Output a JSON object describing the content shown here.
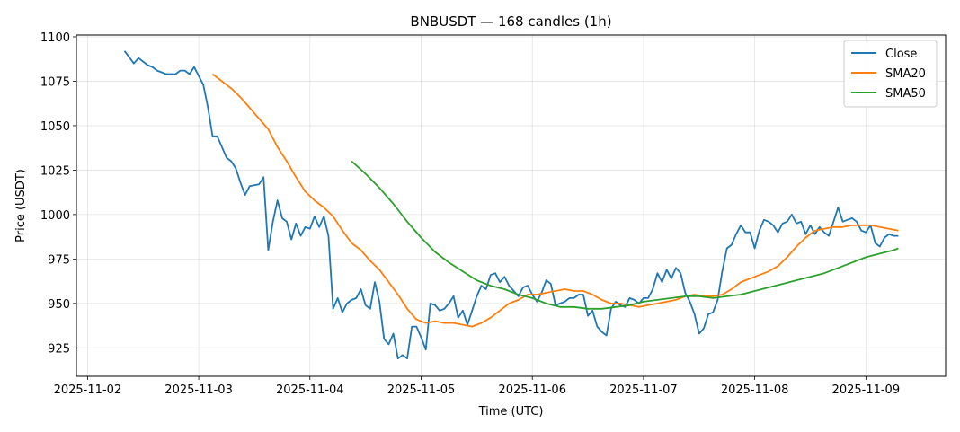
{
  "chart_data": {
    "type": "line",
    "title": "BNBUSDT — 168 candles (1h)",
    "xlabel": "Time (UTC)",
    "ylabel": "Price (USDT)",
    "x_start": "2025-11-02 08:00",
    "x_end": "2025-11-09 07:00",
    "x_tick_labels": [
      "2025-11-02",
      "2025-11-03",
      "2025-11-04",
      "2025-11-05",
      "2025-11-06",
      "2025-11-07",
      "2025-11-08",
      "2025-11-09"
    ],
    "y_tick_labels": [
      "925",
      "950",
      "975",
      "1000",
      "1025",
      "1050",
      "1075",
      "1100"
    ],
    "y_ticks": [
      925,
      950,
      975,
      1000,
      1025,
      1050,
      1075,
      1100
    ],
    "ylim": [
      909,
      1101
    ],
    "xlim_hours": [
      -2.4,
      185.2
    ],
    "grid": true,
    "legend_position": "upper-right",
    "series": [
      {
        "name": "Close",
        "color": "#1f77b4",
        "points": [
          [
            8,
            1092
          ],
          [
            10,
            1085
          ],
          [
            11,
            1088
          ],
          [
            13,
            1084
          ],
          [
            14,
            1083
          ],
          [
            15,
            1081
          ],
          [
            17,
            1079
          ],
          [
            18,
            1079
          ],
          [
            19,
            1079
          ],
          [
            20,
            1081
          ],
          [
            21,
            1081
          ],
          [
            22,
            1079
          ],
          [
            23,
            1083
          ],
          [
            25,
            1073
          ],
          [
            26,
            1060
          ],
          [
            27,
            1044
          ],
          [
            28,
            1044
          ],
          [
            29,
            1038
          ],
          [
            30,
            1032
          ],
          [
            31,
            1030
          ],
          [
            32,
            1026
          ],
          [
            33,
            1018
          ],
          [
            34,
            1011
          ],
          [
            35,
            1016
          ],
          [
            37,
            1017
          ],
          [
            38,
            1021
          ],
          [
            39,
            980
          ],
          [
            40,
            996
          ],
          [
            41,
            1008
          ],
          [
            42,
            998
          ],
          [
            43,
            996
          ],
          [
            44,
            986
          ],
          [
            45,
            995
          ],
          [
            46,
            988
          ],
          [
            47,
            993
          ],
          [
            48,
            992
          ],
          [
            49,
            999
          ],
          [
            50,
            993
          ],
          [
            51,
            999
          ],
          [
            52,
            988
          ],
          [
            53,
            947
          ],
          [
            54,
            953
          ],
          [
            55,
            945
          ],
          [
            56,
            950
          ],
          [
            57,
            952
          ],
          [
            58,
            953
          ],
          [
            59,
            958
          ],
          [
            60,
            949
          ],
          [
            61,
            947
          ],
          [
            62,
            962
          ],
          [
            63,
            951
          ],
          [
            64,
            930
          ],
          [
            65,
            927
          ],
          [
            66,
            933
          ],
          [
            67,
            919
          ],
          [
            68,
            921
          ],
          [
            69,
            919
          ],
          [
            70,
            937
          ],
          [
            71,
            937
          ],
          [
            72,
            931
          ],
          [
            73,
            924
          ],
          [
            74,
            950
          ],
          [
            75,
            949
          ],
          [
            76,
            946
          ],
          [
            77,
            947
          ],
          [
            78,
            950
          ],
          [
            79,
            954
          ],
          [
            80,
            942
          ],
          [
            81,
            946
          ],
          [
            82,
            938
          ],
          [
            83,
            946
          ],
          [
            84,
            954
          ],
          [
            85,
            960
          ],
          [
            86,
            958
          ],
          [
            87,
            966
          ],
          [
            88,
            967
          ],
          [
            89,
            962
          ],
          [
            90,
            965
          ],
          [
            91,
            960
          ],
          [
            92,
            957
          ],
          [
            93,
            954
          ],
          [
            94,
            959
          ],
          [
            95,
            960
          ],
          [
            96,
            955
          ],
          [
            97,
            951
          ],
          [
            98,
            956
          ],
          [
            99,
            963
          ],
          [
            100,
            961
          ],
          [
            101,
            949
          ],
          [
            102,
            950
          ],
          [
            103,
            951
          ],
          [
            104,
            953
          ],
          [
            105,
            953
          ],
          [
            106,
            955
          ],
          [
            107,
            955
          ],
          [
            108,
            943
          ],
          [
            109,
            946
          ],
          [
            110,
            937
          ],
          [
            111,
            934
          ],
          [
            112,
            932
          ],
          [
            113,
            947
          ],
          [
            114,
            951
          ],
          [
            115,
            949
          ],
          [
            116,
            948
          ],
          [
            117,
            953
          ],
          [
            118,
            952
          ],
          [
            119,
            950
          ],
          [
            120,
            953
          ],
          [
            121,
            953
          ],
          [
            122,
            958
          ],
          [
            123,
            967
          ],
          [
            124,
            962
          ],
          [
            125,
            969
          ],
          [
            126,
            964
          ],
          [
            127,
            970
          ],
          [
            128,
            967
          ],
          [
            129,
            956
          ],
          [
            130,
            951
          ],
          [
            131,
            944
          ],
          [
            132,
            933
          ],
          [
            133,
            936
          ],
          [
            134,
            944
          ],
          [
            135,
            945
          ],
          [
            136,
            952
          ],
          [
            137,
            968
          ],
          [
            138,
            981
          ],
          [
            139,
            983
          ],
          [
            140,
            989
          ],
          [
            141,
            994
          ],
          [
            142,
            990
          ],
          [
            143,
            990
          ],
          [
            144,
            981
          ],
          [
            145,
            991
          ],
          [
            146,
            997
          ],
          [
            147,
            996
          ],
          [
            148,
            994
          ],
          [
            149,
            990
          ],
          [
            150,
            995
          ],
          [
            151,
            996
          ],
          [
            152,
            1000
          ],
          [
            153,
            995
          ],
          [
            154,
            996
          ],
          [
            155,
            989
          ],
          [
            156,
            994
          ],
          [
            157,
            989
          ],
          [
            158,
            993
          ],
          [
            159,
            990
          ],
          [
            160,
            988
          ],
          [
            161,
            996
          ],
          [
            162,
            1004
          ],
          [
            163,
            996
          ],
          [
            164,
            997
          ],
          [
            165,
            998
          ],
          [
            166,
            996
          ],
          [
            167,
            991
          ],
          [
            168,
            990
          ],
          [
            169,
            994
          ],
          [
            170,
            984
          ],
          [
            171,
            982
          ],
          [
            172,
            987
          ],
          [
            173,
            989
          ],
          [
            174,
            988
          ],
          [
            175,
            988
          ]
        ]
      },
      {
        "name": "SMA20",
        "color": "#ff7f0e",
        "points": [
          [
            27,
            1079
          ],
          [
            29,
            1075
          ],
          [
            31,
            1071
          ],
          [
            33,
            1066
          ],
          [
            35,
            1060
          ],
          [
            37,
            1054
          ],
          [
            39,
            1048
          ],
          [
            41,
            1038
          ],
          [
            43,
            1030
          ],
          [
            45,
            1021
          ],
          [
            47,
            1013
          ],
          [
            49,
            1008
          ],
          [
            51,
            1004
          ],
          [
            53,
            999
          ],
          [
            55,
            991
          ],
          [
            57,
            984
          ],
          [
            59,
            980
          ],
          [
            61,
            974
          ],
          [
            63,
            969
          ],
          [
            65,
            962
          ],
          [
            67,
            955
          ],
          [
            69,
            947
          ],
          [
            71,
            941
          ],
          [
            73,
            939
          ],
          [
            75,
            940
          ],
          [
            77,
            939
          ],
          [
            79,
            939
          ],
          [
            81,
            938
          ],
          [
            83,
            937
          ],
          [
            85,
            939
          ],
          [
            87,
            942
          ],
          [
            89,
            946
          ],
          [
            91,
            950
          ],
          [
            93,
            952
          ],
          [
            95,
            955
          ],
          [
            97,
            955
          ],
          [
            99,
            956
          ],
          [
            101,
            957
          ],
          [
            103,
            958
          ],
          [
            105,
            957
          ],
          [
            107,
            957
          ],
          [
            109,
            955
          ],
          [
            111,
            952
          ],
          [
            113,
            950
          ],
          [
            115,
            950
          ],
          [
            117,
            949
          ],
          [
            119,
            948
          ],
          [
            121,
            949
          ],
          [
            123,
            950
          ],
          [
            125,
            951
          ],
          [
            127,
            952
          ],
          [
            129,
            954
          ],
          [
            131,
            955
          ],
          [
            133,
            954
          ],
          [
            135,
            954
          ],
          [
            137,
            955
          ],
          [
            139,
            958
          ],
          [
            141,
            962
          ],
          [
            143,
            964
          ],
          [
            145,
            966
          ],
          [
            147,
            968
          ],
          [
            149,
            971
          ],
          [
            151,
            976
          ],
          [
            153,
            982
          ],
          [
            155,
            987
          ],
          [
            157,
            991
          ],
          [
            159,
            992
          ],
          [
            161,
            993
          ],
          [
            163,
            993
          ],
          [
            165,
            994
          ],
          [
            167,
            994
          ],
          [
            169,
            994
          ],
          [
            171,
            993
          ],
          [
            173,
            992
          ],
          [
            175,
            991
          ]
        ]
      },
      {
        "name": "SMA50",
        "color": "#2ca02c",
        "points": [
          [
            57,
            1030
          ],
          [
            60,
            1023
          ],
          [
            63,
            1015
          ],
          [
            66,
            1006
          ],
          [
            69,
            996
          ],
          [
            72,
            987
          ],
          [
            75,
            979
          ],
          [
            78,
            973
          ],
          [
            81,
            968
          ],
          [
            84,
            963
          ],
          [
            87,
            960
          ],
          [
            90,
            958
          ],
          [
            93,
            955
          ],
          [
            96,
            953
          ],
          [
            99,
            950
          ],
          [
            102,
            948
          ],
          [
            105,
            948
          ],
          [
            108,
            947
          ],
          [
            111,
            947
          ],
          [
            114,
            948
          ],
          [
            117,
            949
          ],
          [
            120,
            951
          ],
          [
            123,
            952
          ],
          [
            126,
            953
          ],
          [
            129,
            954
          ],
          [
            132,
            954
          ],
          [
            135,
            953
          ],
          [
            138,
            954
          ],
          [
            141,
            955
          ],
          [
            144,
            957
          ],
          [
            147,
            959
          ],
          [
            150,
            961
          ],
          [
            153,
            963
          ],
          [
            156,
            965
          ],
          [
            159,
            967
          ],
          [
            162,
            970
          ],
          [
            165,
            973
          ],
          [
            168,
            976
          ],
          [
            171,
            978
          ],
          [
            174,
            980
          ],
          [
            175,
            981
          ]
        ]
      }
    ]
  }
}
